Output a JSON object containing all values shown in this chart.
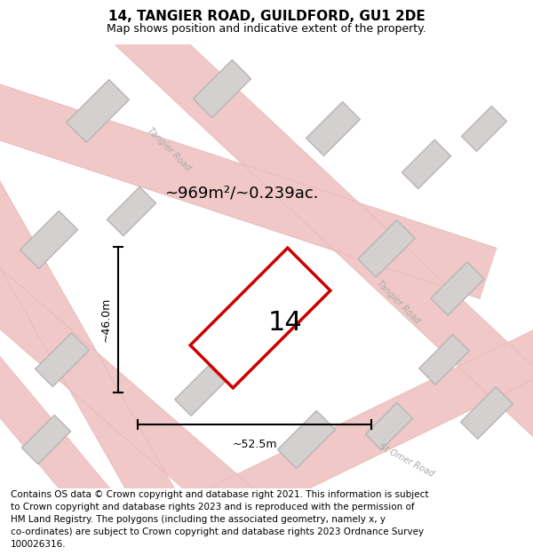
{
  "title": "14, TANGIER ROAD, GUILDFORD, GU1 2DE",
  "subtitle": "Map shows position and indicative extent of the property.",
  "footer_lines": [
    "Contains OS data © Crown copyright and database right 2021. This information is subject",
    "to Crown copyright and database rights 2023 and is reproduced with the permission of",
    "HM Land Registry. The polygons (including the associated geometry, namely x, y",
    "co-ordinates) are subject to Crown copyright and database rights 2023 Ordnance Survey",
    "100026316."
  ],
  "area_label": "~969m²/~0.239ac.",
  "property_number": "14",
  "width_label": "~52.5m",
  "height_label": "~46.0m",
  "map_background": "#f7f2f2",
  "road_color": "#f0c8c8",
  "road_edge_color": "#e8b8b8",
  "building_color": "#d4d0d0",
  "building_outline": "#b8b4b4",
  "property_fill": "#ffffff",
  "property_outline": "#cc0000",
  "road_label_color": "#aaaaaa",
  "title_fontsize": 11,
  "subtitle_fontsize": 9,
  "footer_fontsize": 7.5
}
